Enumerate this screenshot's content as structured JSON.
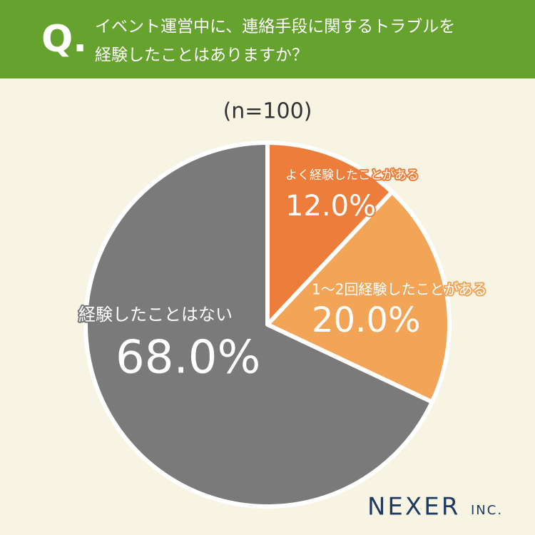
{
  "chart_data": {
    "type": "pie",
    "question_label": "Q.",
    "title_lines": [
      "イベント運営中に、連絡手段に関するトラブルを",
      "経験したことはありますか？"
    ],
    "subtitle": "(n=100)",
    "categories": [
      "よく経験したことがある",
      "1～2回経験したことがある",
      "経験したことはない"
    ],
    "values": [
      12.0,
      20.0,
      68.0
    ],
    "value_labels": [
      "12.0%",
      "20.0%",
      "68.0%"
    ],
    "colors": [
      "#ed7d3a",
      "#f2a457",
      "#7a7a7a"
    ],
    "logo": "NEXER",
    "logo_suffix": "INC."
  }
}
